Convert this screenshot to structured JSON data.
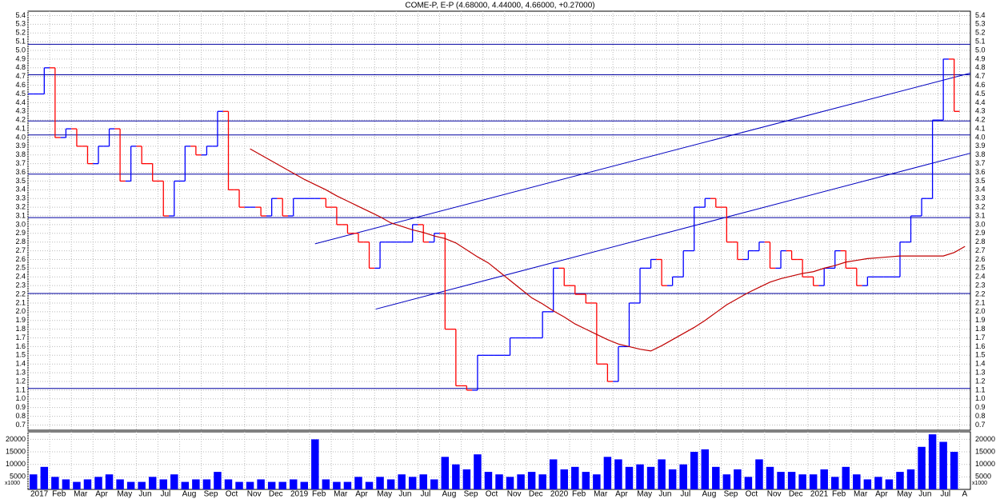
{
  "chart_data": {
    "type": "stock",
    "title": "COME-P, E-P (4.68000, 4.44000, 4.66000, +0.27000)",
    "categories": [
      "2017",
      null,
      "Feb",
      null,
      "Mar",
      null,
      "Apr",
      null,
      "May",
      null,
      "Jun",
      null,
      "Jul",
      null,
      "Aug",
      null,
      "Sep",
      null,
      "Oct",
      null,
      "Nov",
      null,
      "Dec",
      null,
      "2019",
      null,
      "Feb",
      null,
      "Mar",
      null,
      "Apr",
      null,
      "May",
      null,
      "Jun",
      null,
      "Jul",
      null,
      "Aug",
      null,
      "Sep",
      null,
      "Oct",
      null,
      "Nov",
      null,
      "Dec",
      null,
      "2020",
      null,
      "Feb",
      null,
      "Mar",
      null,
      "Apr",
      null,
      "May",
      null,
      "Jun",
      null,
      "Jul",
      null,
      "Aug",
      null,
      "Sep",
      null,
      "Oct",
      null,
      "Nov",
      null,
      "Dec",
      null,
      "2021",
      null,
      "Feb",
      null,
      "Mar",
      null,
      "Apr",
      null,
      "May",
      null,
      "Jun",
      null,
      "Jul",
      null,
      "A"
    ],
    "values": [
      4.5,
      4.8,
      4.0,
      4.1,
      3.9,
      3.7,
      3.9,
      4.1,
      3.5,
      3.9,
      3.7,
      3.5,
      3.1,
      3.5,
      3.9,
      3.8,
      3.9,
      4.3,
      3.4,
      3.2,
      3.2,
      3.1,
      3.3,
      3.1,
      3.3,
      3.3,
      3.3,
      3.2,
      3.0,
      2.9,
      2.8,
      2.5,
      2.8,
      2.8,
      2.8,
      3.0,
      2.8,
      2.9,
      1.8,
      1.15,
      1.1,
      1.5,
      1.5,
      1.5,
      1.7,
      1.7,
      1.7,
      2.0,
      2.5,
      2.3,
      2.2,
      2.1,
      1.4,
      1.2,
      1.6,
      2.1,
      2.5,
      2.6,
      2.3,
      2.4,
      2.7,
      3.2,
      3.3,
      3.2,
      2.8,
      2.6,
      2.7,
      2.8,
      2.5,
      2.7,
      2.6,
      2.4,
      2.3,
      2.5,
      2.7,
      2.5,
      2.3,
      2.4,
      2.4,
      2.4,
      2.8,
      3.1,
      3.3,
      4.2,
      4.9,
      4.3,
      null
    ],
    "up_color": "#0000ff",
    "down_color": "#ff0000",
    "moving_average": {
      "color": "#c00000",
      "values": [
        null,
        null,
        null,
        null,
        null,
        null,
        null,
        null,
        null,
        null,
        null,
        null,
        null,
        null,
        null,
        null,
        null,
        null,
        null,
        null,
        3.87,
        3.8,
        3.73,
        3.66,
        3.59,
        3.52,
        3.46,
        3.4,
        3.33,
        3.27,
        3.21,
        3.15,
        3.09,
        3.02,
        2.98,
        2.94,
        2.91,
        2.87,
        2.84,
        2.79,
        2.71,
        2.63,
        2.56,
        2.46,
        2.36,
        2.26,
        2.16,
        2.09,
        2.01,
        1.94,
        1.86,
        1.8,
        1.74,
        1.68,
        1.63,
        1.6,
        1.57,
        1.55,
        1.61,
        1.68,
        1.75,
        1.82,
        1.9,
        1.99,
        2.08,
        2.15,
        2.22,
        2.28,
        2.34,
        2.38,
        2.41,
        2.44,
        2.46,
        2.5,
        2.53,
        2.57,
        2.59,
        2.61,
        2.62,
        2.63,
        2.64,
        2.64,
        2.64,
        2.64,
        2.64,
        2.68,
        2.75
      ]
    },
    "hlines": {
      "color": "#0000a0",
      "values": [
        5.07,
        4.72,
        4.19,
        4.03,
        3.58,
        3.08,
        2.21,
        1.12
      ]
    },
    "trendlines": {
      "color": "#0000c0",
      "lines": [
        {
          "start": [
            26,
            2.78
          ],
          "end": [
            86.5,
            4.74
          ]
        },
        {
          "start": [
            31.6,
            2.03
          ],
          "end": [
            86.5,
            3.82
          ]
        }
      ]
    },
    "ylim": [
      0.64,
      5.45
    ],
    "yticks": [
      0.7,
      0.8,
      0.9,
      {
        "value": 1,
        "label": "1.0"
      },
      1.1,
      1.2,
      1.3,
      1.4,
      1.5,
      1.6,
      1.7,
      1.8,
      1.9,
      {
        "value": 2,
        "label": "2.0"
      },
      2.1,
      2.2,
      2.3,
      2.4,
      2.5,
      2.6,
      2.7,
      2.8,
      2.9,
      {
        "value": 3,
        "label": "3.0"
      },
      3.1,
      3.2,
      3.3,
      3.4,
      3.5,
      3.6,
      3.7,
      3.8,
      3.9,
      {
        "value": 4,
        "label": "4.0"
      },
      4.1,
      4.2,
      4.3,
      4.4,
      4.5,
      4.6,
      4.7,
      4.8,
      4.9,
      {
        "value": 5,
        "label": "5.0"
      },
      5.1,
      5.2,
      5.3,
      5.4
    ],
    "grid": true,
    "volume": {
      "color": "#0000ff",
      "unit_label": "x1000",
      "ylim": [
        0,
        23000
      ],
      "yticks": [
        5000,
        10000,
        15000,
        20000
      ],
      "values": [
        6000,
        9000,
        5000,
        4000,
        3000,
        4000,
        5000,
        6000,
        4000,
        3000,
        3000,
        5000,
        4000,
        6000,
        3000,
        4000,
        4000,
        7000,
        4000,
        3000,
        3000,
        4000,
        3000,
        3000,
        4000,
        3000,
        20000,
        4000,
        3000,
        3000,
        5000,
        3000,
        5000,
        4000,
        6000,
        5000,
        6000,
        4000,
        13000,
        10000,
        8000,
        14000,
        7000,
        6000,
        5000,
        6000,
        7000,
        6000,
        12000,
        8000,
        9000,
        7000,
        6000,
        13000,
        12000,
        9000,
        10000,
        9000,
        12000,
        8000,
        10000,
        15000,
        16000,
        9000,
        6000,
        8000,
        5000,
        12000,
        9000,
        7000,
        7000,
        6000,
        6000,
        8000,
        5000,
        9000,
        6000,
        4000,
        5000,
        4000,
        7000,
        8000,
        17000,
        22000,
        19000,
        15000,
        null
      ]
    }
  }
}
